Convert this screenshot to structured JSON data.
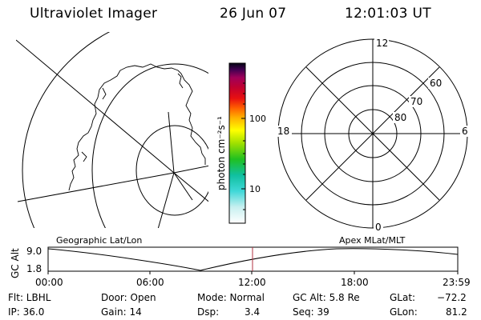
{
  "header": {
    "title": "Ultraviolet Imager",
    "date": "26 Jun 07",
    "time": "12:01:03 UT"
  },
  "colorbar": {
    "unit_label": "photon cm⁻²s⁻¹",
    "tick_100": "100",
    "tick_10": "10"
  },
  "polar_plot": {
    "label_top": "12",
    "label_left": "18",
    "label_right": "6",
    "label_bottom": "0",
    "lat_60": "60",
    "lat_70": "70",
    "lat_80": "80"
  },
  "panel_labels": {
    "left": "Geographic Lat/Lon",
    "right": "Apex MLat/MLT"
  },
  "altitude_plot": {
    "ylabel": "GC Alt",
    "y_top": "9.0",
    "y_bottom": "1.8",
    "x_ticks": [
      "00:00",
      "06:00",
      "12:00",
      "18:00",
      "23:59"
    ]
  },
  "status": {
    "filter": "Flt: LBHL",
    "ip": "IP: 36.0",
    "door": "Door: Open",
    "gain": "Gain: 14",
    "mode": "Mode: Normal",
    "dsp_label": "Dsp:",
    "dsp_value": "3.4",
    "gc_alt": "GC Alt: 5.8 Re",
    "seq": "Seq: 39",
    "glat_label": "GLat:",
    "glat_value": "−72.2",
    "glon_label": "GLon:",
    "glon_value": "81.2"
  },
  "colors": {
    "marker_line": "#b03040",
    "foreground": "#000000",
    "background": "#ffffff"
  }
}
